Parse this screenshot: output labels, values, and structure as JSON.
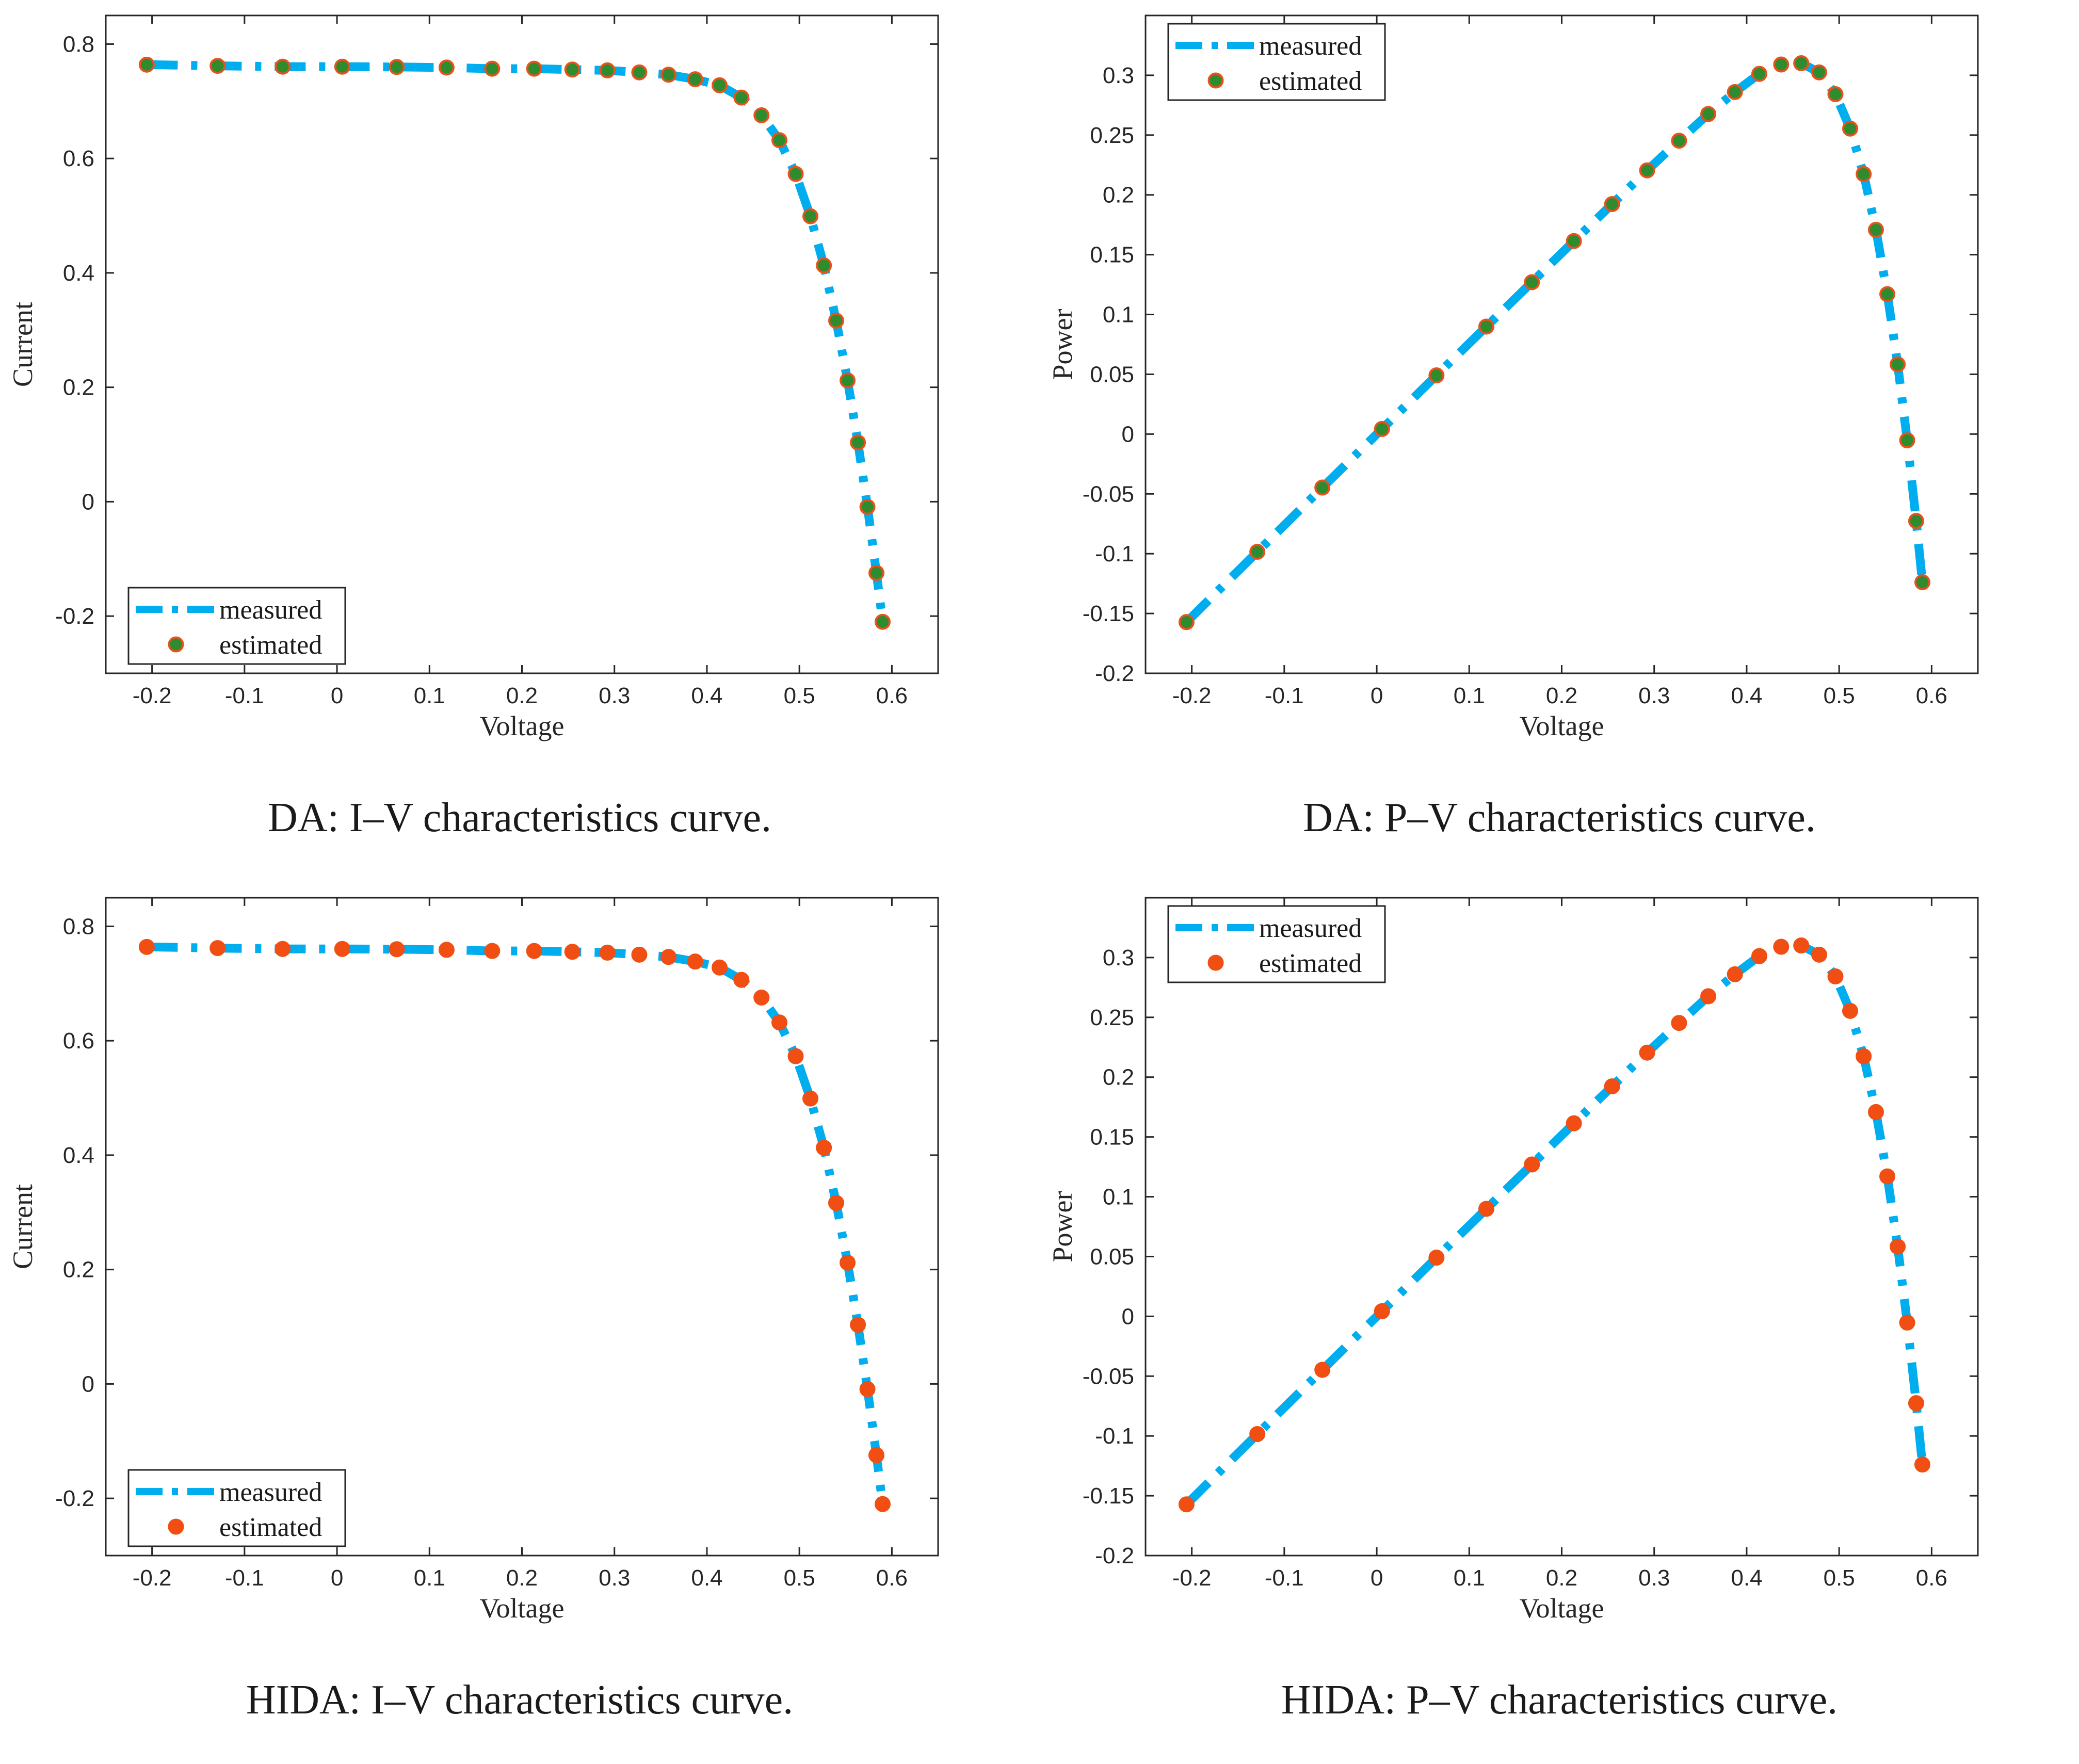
{
  "colors": {
    "measured": "#00ADEF",
    "estimated_fill_da": "#2E8B2E",
    "estimated_stroke_da": "#E8521C",
    "estimated_fill_hida": "#F04E12",
    "estimated_stroke_hida": "#F04E12"
  },
  "legend": {
    "measured": "measured",
    "estimated": "estimated"
  },
  "chart_data": [
    {
      "id": "da-iv",
      "type": "line",
      "caption": "DA: I–V characteristics curve.",
      "xlabel": "Voltage",
      "ylabel": "Current",
      "xlim": [
        -0.25,
        0.65
      ],
      "ylim": [
        -0.3,
        0.85
      ],
      "xticks": [
        -0.2,
        -0.1,
        0,
        0.1,
        0.2,
        0.3,
        0.4,
        0.5,
        0.6
      ],
      "xtick_labels": [
        "-0.2",
        "-0.1",
        "0",
        "0.1",
        "0.2",
        "0.3",
        "0.4",
        "0.5",
        "0.6"
      ],
      "yticks": [
        -0.2,
        0,
        0.2,
        0.4,
        0.6,
        0.8
      ],
      "ytick_labels": [
        "-0.2",
        "0",
        "0.2",
        "0.4",
        "0.6",
        "0.8"
      ],
      "legend_position": "bottom-left",
      "estimated_style": "da",
      "x": [
        -0.2057,
        -0.1291,
        -0.0588,
        0.0057,
        0.0646,
        0.1185,
        0.1678,
        0.2132,
        0.2545,
        0.2924,
        0.3269,
        0.3585,
        0.3873,
        0.4137,
        0.4373,
        0.459,
        0.4784,
        0.496,
        0.5119,
        0.5265,
        0.5398,
        0.5521,
        0.5633,
        0.5736,
        0.5833,
        0.59
      ],
      "series": [
        {
          "name": "measured",
          "values": [
            0.764,
            0.762,
            0.7605,
            0.7605,
            0.76,
            0.759,
            0.757,
            0.757,
            0.7555,
            0.754,
            0.7505,
            0.7465,
            0.7385,
            0.728,
            0.7065,
            0.6755,
            0.632,
            0.573,
            0.499,
            0.413,
            0.3165,
            0.212,
            0.1035,
            -0.009,
            -0.1245,
            -0.21
          ]
        },
        {
          "name": "estimated",
          "values": [
            0.764,
            0.762,
            0.7605,
            0.7605,
            0.76,
            0.759,
            0.757,
            0.757,
            0.7555,
            0.754,
            0.7505,
            0.7465,
            0.7385,
            0.728,
            0.7065,
            0.6755,
            0.632,
            0.573,
            0.499,
            0.413,
            0.3165,
            0.212,
            0.1035,
            -0.009,
            -0.1245,
            -0.21
          ]
        }
      ]
    },
    {
      "id": "da-pv",
      "type": "line",
      "caption": "DA: P–V characteristics curve.",
      "xlabel": "Voltage",
      "ylabel": "Power",
      "xlim": [
        -0.25,
        0.65
      ],
      "ylim": [
        -0.2,
        0.35
      ],
      "xticks": [
        -0.2,
        -0.1,
        0,
        0.1,
        0.2,
        0.3,
        0.4,
        0.5,
        0.6
      ],
      "xtick_labels": [
        "-0.2",
        "-0.1",
        "0",
        "0.1",
        "0.2",
        "0.3",
        "0.4",
        "0.5",
        "0.6"
      ],
      "yticks": [
        -0.2,
        -0.15,
        -0.1,
        -0.05,
        0,
        0.05,
        0.1,
        0.15,
        0.2,
        0.25,
        0.3
      ],
      "ytick_labels": [
        "-0.2",
        "-0.15",
        "-0.1",
        "-0.05",
        "0",
        "0.05",
        "0.1",
        "0.15",
        "0.2",
        "0.25",
        "0.3"
      ],
      "legend_position": "top-left",
      "estimated_style": "da",
      "x": [
        -0.2057,
        -0.1291,
        -0.0588,
        0.0057,
        0.0646,
        0.1185,
        0.1678,
        0.2132,
        0.2545,
        0.2924,
        0.3269,
        0.3585,
        0.3873,
        0.4137,
        0.4373,
        0.459,
        0.4784,
        0.496,
        0.5119,
        0.5265,
        0.5398,
        0.5521,
        0.5633,
        0.5736,
        0.5833,
        0.59
      ],
      "series": [
        {
          "name": "measured",
          "values": [
            -0.1572,
            -0.0984,
            -0.0447,
            0.0043,
            0.0491,
            0.0899,
            0.127,
            0.1614,
            0.1923,
            0.2205,
            0.2453,
            0.2676,
            0.286,
            0.3012,
            0.309,
            0.3101,
            0.3024,
            0.2842,
            0.2554,
            0.2174,
            0.1708,
            0.117,
            0.0583,
            -0.0052,
            -0.0726,
            -0.1239
          ]
        },
        {
          "name": "estimated",
          "values": [
            -0.1572,
            -0.0984,
            -0.0447,
            0.0043,
            0.0491,
            0.0899,
            0.127,
            0.1614,
            0.1923,
            0.2205,
            0.2453,
            0.2676,
            0.286,
            0.3012,
            0.309,
            0.3101,
            0.3024,
            0.2842,
            0.2554,
            0.2174,
            0.1708,
            0.117,
            0.0583,
            -0.0052,
            -0.0726,
            -0.1239
          ]
        }
      ]
    },
    {
      "id": "hida-iv",
      "type": "line",
      "caption": "HIDA: I–V characteristics curve.",
      "xlabel": "Voltage",
      "ylabel": "Current",
      "xlim": [
        -0.25,
        0.65
      ],
      "ylim": [
        -0.3,
        0.85
      ],
      "xticks": [
        -0.2,
        -0.1,
        0,
        0.1,
        0.2,
        0.3,
        0.4,
        0.5,
        0.6
      ],
      "xtick_labels": [
        "-0.2",
        "-0.1",
        "0",
        "0.1",
        "0.2",
        "0.3",
        "0.4",
        "0.5",
        "0.6"
      ],
      "yticks": [
        -0.2,
        0,
        0.2,
        0.4,
        0.6,
        0.8
      ],
      "ytick_labels": [
        "-0.2",
        "0",
        "0.2",
        "0.4",
        "0.6",
        "0.8"
      ],
      "legend_position": "bottom-left",
      "estimated_style": "hida",
      "x": [
        -0.2057,
        -0.1291,
        -0.0588,
        0.0057,
        0.0646,
        0.1185,
        0.1678,
        0.2132,
        0.2545,
        0.2924,
        0.3269,
        0.3585,
        0.3873,
        0.4137,
        0.4373,
        0.459,
        0.4784,
        0.496,
        0.5119,
        0.5265,
        0.5398,
        0.5521,
        0.5633,
        0.5736,
        0.5833,
        0.59
      ],
      "series": [
        {
          "name": "measured",
          "values": [
            0.764,
            0.762,
            0.7605,
            0.7605,
            0.76,
            0.759,
            0.757,
            0.757,
            0.7555,
            0.754,
            0.7505,
            0.7465,
            0.7385,
            0.728,
            0.7065,
            0.6755,
            0.632,
            0.573,
            0.499,
            0.413,
            0.3165,
            0.212,
            0.1035,
            -0.009,
            -0.1245,
            -0.21
          ]
        },
        {
          "name": "estimated",
          "values": [
            0.764,
            0.762,
            0.7605,
            0.7605,
            0.76,
            0.759,
            0.757,
            0.757,
            0.7555,
            0.754,
            0.7505,
            0.7465,
            0.7385,
            0.728,
            0.7065,
            0.6755,
            0.632,
            0.573,
            0.499,
            0.413,
            0.3165,
            0.212,
            0.1035,
            -0.009,
            -0.1245,
            -0.21
          ]
        }
      ]
    },
    {
      "id": "hida-pv",
      "type": "line",
      "caption": "HIDA: P–V characteristics curve.",
      "xlabel": "Voltage",
      "ylabel": "Power",
      "xlim": [
        -0.25,
        0.65
      ],
      "ylim": [
        -0.2,
        0.35
      ],
      "xticks": [
        -0.2,
        -0.1,
        0,
        0.1,
        0.2,
        0.3,
        0.4,
        0.5,
        0.6
      ],
      "xtick_labels": [
        "-0.2",
        "-0.1",
        "0",
        "0.1",
        "0.2",
        "0.3",
        "0.4",
        "0.5",
        "0.6"
      ],
      "yticks": [
        -0.2,
        -0.15,
        -0.1,
        -0.05,
        0,
        0.05,
        0.1,
        0.15,
        0.2,
        0.25,
        0.3
      ],
      "ytick_labels": [
        "-0.2",
        "-0.15",
        "-0.1",
        "-0.05",
        "0",
        "0.05",
        "0.1",
        "0.15",
        "0.2",
        "0.25",
        "0.3"
      ],
      "legend_position": "top-left",
      "estimated_style": "hida",
      "x": [
        -0.2057,
        -0.1291,
        -0.0588,
        0.0057,
        0.0646,
        0.1185,
        0.1678,
        0.2132,
        0.2545,
        0.2924,
        0.3269,
        0.3585,
        0.3873,
        0.4137,
        0.4373,
        0.459,
        0.4784,
        0.496,
        0.5119,
        0.5265,
        0.5398,
        0.5521,
        0.5633,
        0.5736,
        0.5833,
        0.59
      ],
      "series": [
        {
          "name": "measured",
          "values": [
            -0.1572,
            -0.0984,
            -0.0447,
            0.0043,
            0.0491,
            0.0899,
            0.127,
            0.1614,
            0.1923,
            0.2205,
            0.2453,
            0.2676,
            0.286,
            0.3012,
            0.309,
            0.3101,
            0.3024,
            0.2842,
            0.2554,
            0.2174,
            0.1708,
            0.117,
            0.0583,
            -0.0052,
            -0.0726,
            -0.1239
          ]
        },
        {
          "name": "estimated",
          "values": [
            -0.1572,
            -0.0984,
            -0.0447,
            0.0043,
            0.0491,
            0.0899,
            0.127,
            0.1614,
            0.1923,
            0.2205,
            0.2453,
            0.2676,
            0.286,
            0.3012,
            0.309,
            0.3101,
            0.3024,
            0.2842,
            0.2554,
            0.2174,
            0.1708,
            0.117,
            0.0583,
            -0.0052,
            -0.0726,
            -0.1239
          ]
        }
      ]
    }
  ]
}
